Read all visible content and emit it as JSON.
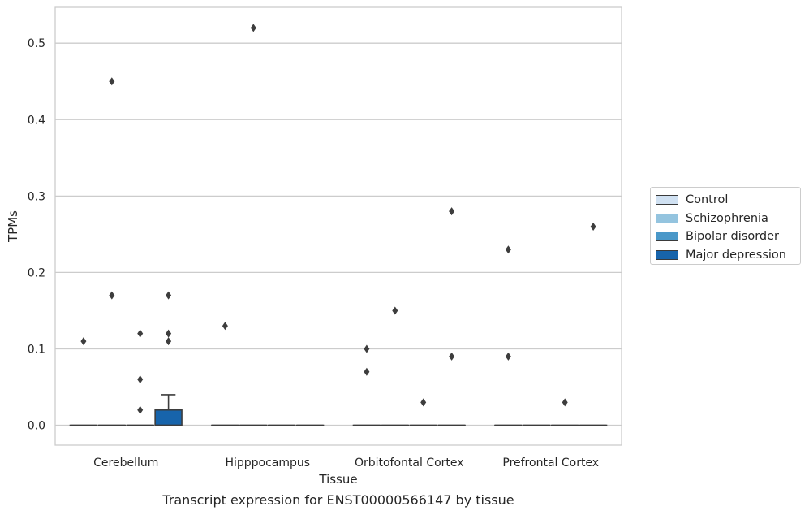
{
  "caption": "Transcript expression for ENST00000566147 by tissue",
  "chart_data": {
    "type": "box",
    "title": "",
    "xlabel": "Tissue",
    "ylabel": "TPMs",
    "ylim": [
      -0.026,
      0.547
    ],
    "yticks": [
      0.0,
      0.1,
      0.2,
      0.3,
      0.4,
      0.5
    ],
    "ytick_labels": [
      "0.0",
      "0.1",
      "0.2",
      "0.3",
      "0.4",
      "0.5"
    ],
    "grid": true,
    "legend_position": "right",
    "categories": [
      "Cerebellum",
      "Hipppocampus",
      "Orbitofontal Cortex",
      "Prefrontal Cortex"
    ],
    "series": [
      {
        "name": "Control",
        "color": "#d0e1f2",
        "boxes": [
          {
            "q1": 0,
            "median": 0,
            "q3": 0,
            "whisker_low": 0,
            "whisker_high": 0,
            "outliers": [
              0.11
            ]
          },
          {
            "q1": 0,
            "median": 0,
            "q3": 0,
            "whisker_low": 0,
            "whisker_high": 0,
            "outliers": [
              0.13
            ]
          },
          {
            "q1": 0,
            "median": 0,
            "q3": 0,
            "whisker_low": 0,
            "whisker_high": 0,
            "outliers": [
              0.1,
              0.07
            ]
          },
          {
            "q1": 0,
            "median": 0,
            "q3": 0,
            "whisker_low": 0,
            "whisker_high": 0,
            "outliers": [
              0.23,
              0.09
            ]
          }
        ]
      },
      {
        "name": "Schizophrenia",
        "color": "#94c4df",
        "boxes": [
          {
            "q1": 0,
            "median": 0,
            "q3": 0,
            "whisker_low": 0,
            "whisker_high": 0,
            "outliers": [
              0.45,
              0.17
            ]
          },
          {
            "q1": 0,
            "median": 0,
            "q3": 0,
            "whisker_low": 0,
            "whisker_high": 0,
            "outliers": [
              0.52
            ]
          },
          {
            "q1": 0,
            "median": 0,
            "q3": 0,
            "whisker_low": 0,
            "whisker_high": 0,
            "outliers": [
              0.15
            ]
          },
          {
            "q1": 0,
            "median": 0,
            "q3": 0,
            "whisker_low": 0,
            "whisker_high": 0,
            "outliers": []
          }
        ]
      },
      {
        "name": "Bipolar disorder",
        "color": "#4a98c9",
        "boxes": [
          {
            "q1": 0,
            "median": 0,
            "q3": 0,
            "whisker_low": 0,
            "whisker_high": 0,
            "outliers": [
              0.12,
              0.06,
              0.02
            ]
          },
          {
            "q1": 0,
            "median": 0,
            "q3": 0,
            "whisker_low": 0,
            "whisker_high": 0,
            "outliers": []
          },
          {
            "q1": 0,
            "median": 0,
            "q3": 0,
            "whisker_low": 0,
            "whisker_high": 0,
            "outliers": [
              0.03
            ]
          },
          {
            "q1": 0,
            "median": 0,
            "q3": 0,
            "whisker_low": 0,
            "whisker_high": 0,
            "outliers": [
              0.03
            ]
          }
        ]
      },
      {
        "name": "Major depression",
        "color": "#1764ab",
        "boxes": [
          {
            "q1": 0,
            "median": 0,
            "q3": 0.02,
            "whisker_low": 0,
            "whisker_high": 0.04,
            "outliers": [
              0.17,
              0.12,
              0.11
            ]
          },
          {
            "q1": 0,
            "median": 0,
            "q3": 0,
            "whisker_low": 0,
            "whisker_high": 0,
            "outliers": []
          },
          {
            "q1": 0,
            "median": 0,
            "q3": 0,
            "whisker_low": 0,
            "whisker_high": 0,
            "outliers": [
              0.28,
              0.09
            ]
          },
          {
            "q1": 0,
            "median": 0,
            "q3": 0,
            "whisker_low": 0,
            "whisker_high": 0,
            "outliers": [
              0.26
            ]
          }
        ]
      }
    ]
  }
}
